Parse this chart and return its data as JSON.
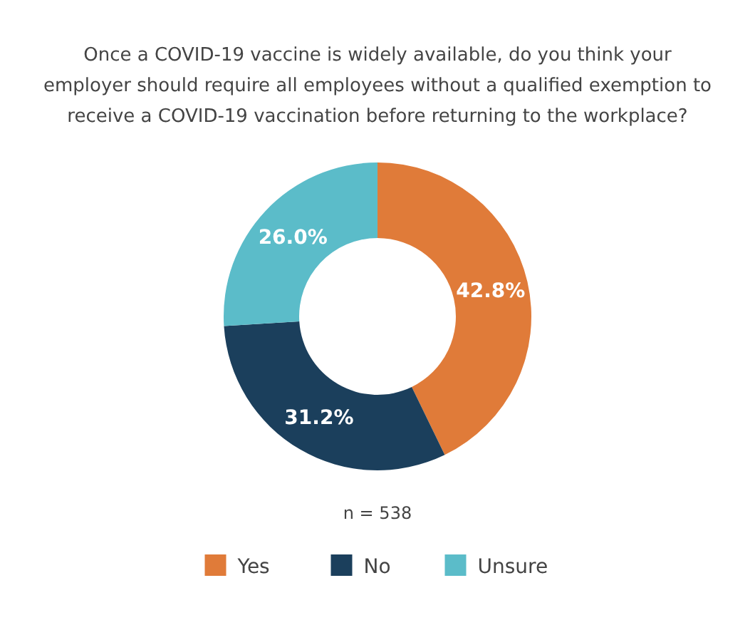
{
  "chart_data": {
    "type": "donut",
    "title": "Once a COVID-19 vaccine is widely available, do you think your employer should require all employees without a qualified exemption to receive a COVID-19 vaccination before returning to the workplace?",
    "categories": [
      "Yes",
      "No",
      "Unsure"
    ],
    "values": [
      42.8,
      31.2,
      26.0
    ],
    "colors": [
      "#e07b39",
      "#1b3f5c",
      "#5bbcc9"
    ],
    "value_labels": [
      "42.8%",
      "31.2%",
      "26.0%"
    ],
    "annotations": [
      "n = 538"
    ],
    "legend": "bottom"
  }
}
